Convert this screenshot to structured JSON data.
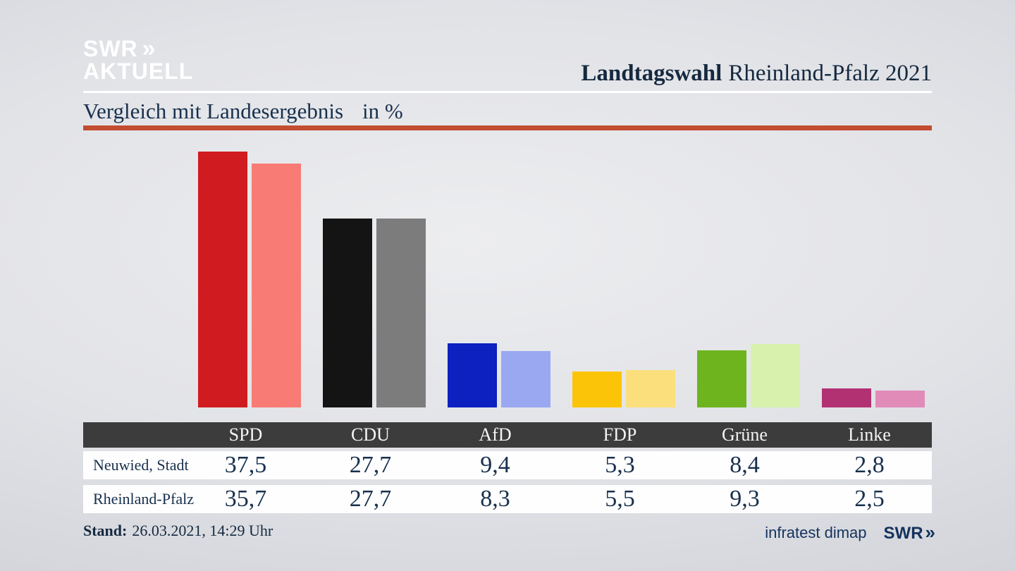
{
  "brand": {
    "logo_line1": "SWR",
    "logo_line2": "AKTUELL",
    "chevrons": "»"
  },
  "header": {
    "title_bold": "Landtagswahl",
    "title_regular": "Rheinland-Pfalz 2021"
  },
  "subtitle": {
    "text": "Vergleich mit Landesergebnis",
    "unit": "in %"
  },
  "chart_data": {
    "type": "bar",
    "title": "Vergleich mit Landesergebnis in %",
    "categories": [
      "SPD",
      "CDU",
      "AfD",
      "FDP",
      "Grüne",
      "Linke"
    ],
    "series": [
      {
        "name": "Neuwied, Stadt",
        "values": [
          37.5,
          27.7,
          9.4,
          5.3,
          8.4,
          2.8
        ]
      },
      {
        "name": "Rheinland-Pfalz",
        "values": [
          35.7,
          27.7,
          8.3,
          5.5,
          9.3,
          2.5
        ]
      }
    ],
    "series_colors": [
      {
        "SPD": "#d01b20",
        "CDU": "#141414",
        "AfD": "#0d20c0",
        "FDP": "#fcc409",
        "Grüne": "#6db41f",
        "Linke": "#b23173"
      },
      {
        "SPD": "#f97b75",
        "CDU": "#7c7c7c",
        "AfD": "#9aa8f2",
        "FDP": "#fbdf7d",
        "Grüne": "#d8f2ad",
        "Linke": "#e18bb9"
      }
    ],
    "ylim": [
      0,
      40
    ],
    "grid": false,
    "legend": "none",
    "value_labels": "shown in table below chart"
  },
  "table": {
    "columns": [
      "SPD",
      "CDU",
      "AfD",
      "FDP",
      "Grüne",
      "Linke"
    ],
    "rows": [
      {
        "label": "Neuwied, Stadt",
        "values": [
          "37,5",
          "27,7",
          "9,4",
          "5,3",
          "8,4",
          "2,8"
        ]
      },
      {
        "label": "Rheinland-Pfalz",
        "values": [
          "35,7",
          "27,7",
          "8,3",
          "5,5",
          "9,3",
          "2,5"
        ]
      }
    ]
  },
  "footer": {
    "stand_label": "Stand:",
    "stand_value": "26.03.2021, 14:29 Uhr",
    "source": "infratest dimap",
    "swr_logo": "SWR",
    "chevrons": "»"
  },
  "colors": {
    "accent_red_rule": "#c24d30",
    "navy_text": "#17304d",
    "table_header_bg": "#3c3c3c",
    "logo_white": "#ffffff"
  }
}
